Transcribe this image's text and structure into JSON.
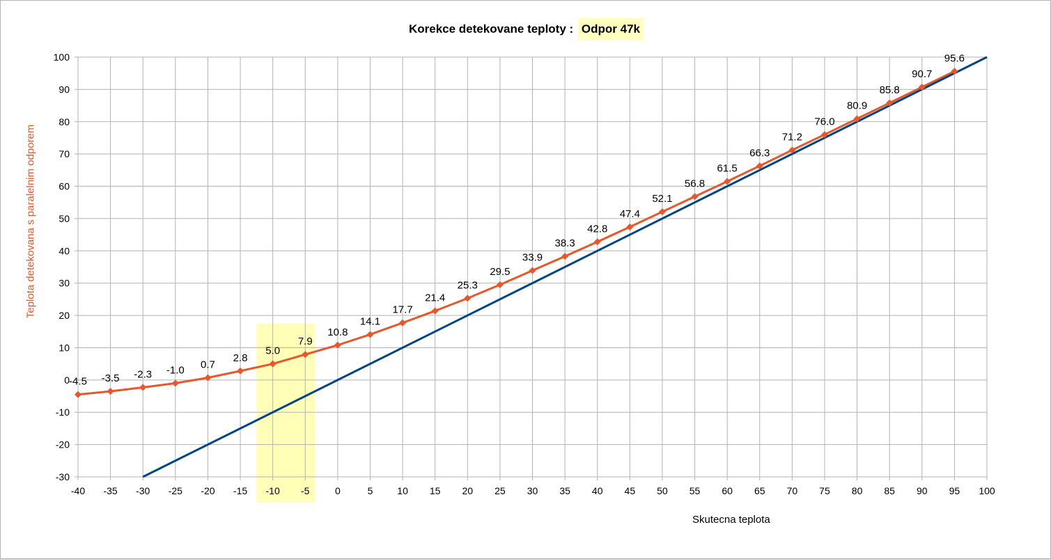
{
  "chart_data": {
    "type": "line",
    "title": "Korekce detekovane teploty :",
    "title_highlight": "Odpor 47k",
    "xlabel": "Skutecna teplota",
    "ylabel": "Teplota detekovana s paralelnim odporem",
    "xlim": [
      -40,
      100
    ],
    "ylim": [
      -30,
      100
    ],
    "x_ticks": [
      -40,
      -35,
      -30,
      -25,
      -20,
      -15,
      -10,
      -5,
      0,
      5,
      10,
      15,
      20,
      25,
      30,
      35,
      40,
      45,
      50,
      55,
      60,
      65,
      70,
      75,
      80,
      85,
      90,
      95,
      100
    ],
    "y_ticks": [
      -30,
      -20,
      -10,
      0,
      10,
      20,
      30,
      40,
      50,
      60,
      70,
      80,
      90,
      100
    ],
    "grid": true,
    "highlight_x_range": [
      -12.5,
      -3.5
    ],
    "highlight_color": "#ffff99",
    "series": [
      {
        "color": "#e8562a",
        "marker": "diamond",
        "x": [
          -40,
          -35,
          -30,
          -25,
          -20,
          -15,
          -10,
          -5,
          0,
          5,
          10,
          15,
          20,
          25,
          30,
          35,
          40,
          45,
          50,
          55,
          60,
          65,
          70,
          75,
          80,
          85,
          90,
          95
        ],
        "y": [
          -4.5,
          -3.5,
          -2.3,
          -1.0,
          0.7,
          2.8,
          5.0,
          7.9,
          10.8,
          14.1,
          17.7,
          21.4,
          25.3,
          29.5,
          33.9,
          38.3,
          42.8,
          47.4,
          52.1,
          56.8,
          61.5,
          66.3,
          71.2,
          76.0,
          80.9,
          85.8,
          90.7,
          95.6
        ],
        "labels": [
          "-4.5",
          "-3.5",
          "-2.3",
          "-1.0",
          "0.7",
          "2.8",
          "5.0",
          "7.9",
          "10.8",
          "14.1",
          "17.7",
          "21.4",
          "25.3",
          "29.5",
          "33.9",
          "38.3",
          "42.8",
          "47.4",
          "52.1",
          "56.8",
          "61.5",
          "66.3",
          "71.2",
          "76.0",
          "80.9",
          "85.8",
          "90.7",
          "95.6"
        ]
      },
      {
        "color": "#004586",
        "marker": "none",
        "x": [
          -30,
          100
        ],
        "y": [
          -30,
          100
        ]
      }
    ]
  }
}
